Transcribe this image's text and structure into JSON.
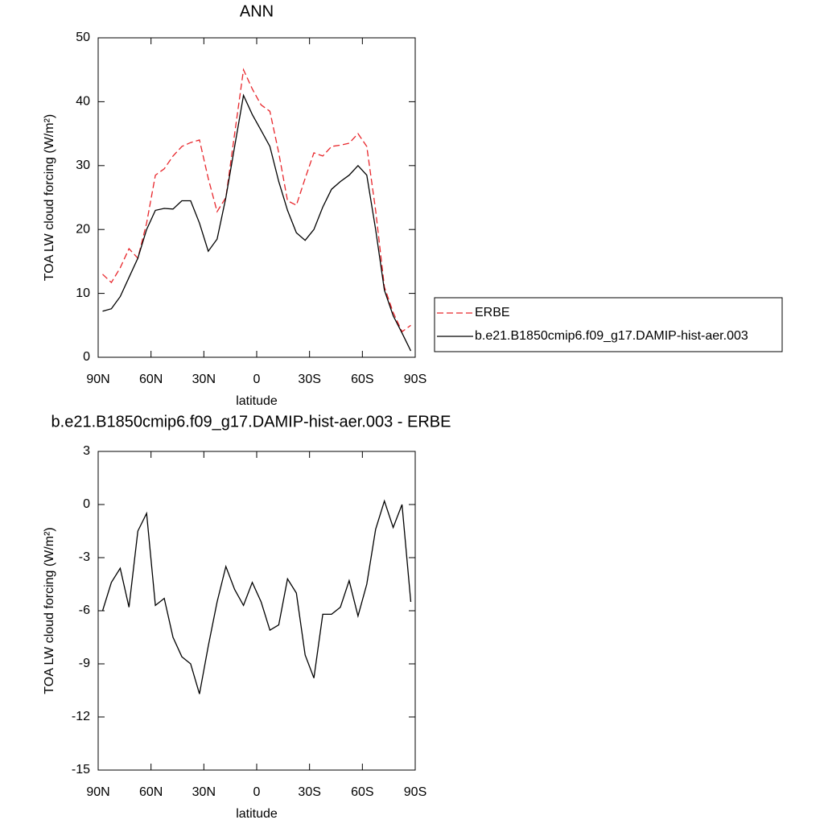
{
  "chart_data": [
    {
      "type": "line",
      "title": "ANN",
      "xlabel": "latitude",
      "ylabel": "TOA LW cloud forcing (W/m²)",
      "x": [
        87.5,
        82.5,
        77.5,
        72.5,
        67.5,
        62.5,
        57.5,
        52.5,
        47.5,
        42.5,
        37.5,
        32.5,
        27.5,
        22.5,
        17.5,
        12.5,
        7.5,
        2.5,
        -2.5,
        -7.5,
        -12.5,
        -17.5,
        -22.5,
        -27.5,
        -32.5,
        -37.5,
        -42.5,
        -47.5,
        -52.5,
        -57.5,
        -62.5,
        -67.5,
        -72.5,
        -77.5,
        -82.5,
        -87.5
      ],
      "xlim": [
        90,
        -90
      ],
      "xticks": [
        {
          "value": 90,
          "label": "90N"
        },
        {
          "value": 60,
          "label": "60N"
        },
        {
          "value": 30,
          "label": "30N"
        },
        0,
        {
          "value": -30,
          "label": "30S"
        },
        {
          "value": -60,
          "label": "60S"
        },
        {
          "value": -90,
          "label": "90S"
        }
      ],
      "ylim": [
        0,
        50
      ],
      "yticks": [
        0,
        10,
        20,
        30,
        40,
        50
      ],
      "series": [
        {
          "name": "ERBE",
          "color": "#e8262b",
          "dash": true,
          "values": [
            13,
            11.7,
            14,
            17,
            15.5,
            21,
            28.5,
            29.5,
            31.5,
            33,
            33.6,
            34,
            28,
            22.8,
            25,
            35,
            45,
            42,
            39.5,
            38.5,
            32,
            24.5,
            23.8,
            28,
            32,
            31.5,
            33,
            33.2,
            33.5,
            35,
            33,
            23,
            11,
            7,
            4,
            5
          ]
        },
        {
          "name": "b.e21.B1850cmip6.f09_g17.DAMIP-hist-aer.003",
          "color": "#000000",
          "dash": false,
          "values": [
            7.2,
            7.6,
            9.5,
            12.5,
            15.5,
            20,
            23,
            23.3,
            23.2,
            24.5,
            24.5,
            21,
            16.6,
            18.5,
            25,
            33,
            41,
            38,
            35.5,
            33,
            27.5,
            23,
            19.5,
            18.3,
            20,
            23.5,
            26.3,
            27.5,
            28.5,
            30,
            28.5,
            20,
            10.5,
            6.5,
            3.8,
            1
          ]
        }
      ]
    },
    {
      "type": "line",
      "title": "b.e21.B1850cmip6.f09_g17.DAMIP-hist-aer.003 - ERBE",
      "xlabel": "latitude",
      "ylabel": "TOA LW cloud forcing (W/m²)",
      "x": [
        87.5,
        82.5,
        77.5,
        72.5,
        67.5,
        62.5,
        57.5,
        52.5,
        47.5,
        42.5,
        37.5,
        32.5,
        27.5,
        22.5,
        17.5,
        12.5,
        7.5,
        2.5,
        -2.5,
        -7.5,
        -12.5,
        -17.5,
        -22.5,
        -27.5,
        -32.5,
        -37.5,
        -42.5,
        -47.5,
        -52.5,
        -57.5,
        -62.5,
        -67.5,
        -72.5,
        -77.5,
        -82.5,
        -87.5
      ],
      "xlim": [
        90,
        -90
      ],
      "xticks": [
        {
          "value": 90,
          "label": "90N"
        },
        {
          "value": 60,
          "label": "60N"
        },
        {
          "value": 30,
          "label": "30N"
        },
        0,
        {
          "value": -30,
          "label": "30S"
        },
        {
          "value": -60,
          "label": "60S"
        },
        {
          "value": -90,
          "label": "90S"
        }
      ],
      "ylim": [
        -15,
        3
      ],
      "yticks": [
        -15,
        -12,
        -9,
        -6,
        -3,
        0,
        3
      ],
      "series": [
        {
          "color": "#000000",
          "dash": false,
          "values": [
            -6,
            -4.4,
            -3.6,
            -5.8,
            -1.5,
            -0.5,
            -5.7,
            -5.3,
            -7.5,
            -8.6,
            -9,
            -10.7,
            -8,
            -5.5,
            -3.5,
            -4.8,
            -5.7,
            -4.4,
            -5.5,
            -7.1,
            -6.8,
            -4.2,
            -5,
            -8.5,
            -9.8,
            -6.2,
            -6.2,
            -5.8,
            -4.3,
            -6.3,
            -4.5,
            -1.4,
            0.2,
            -1.3,
            0,
            -5.5
          ]
        }
      ]
    }
  ]
}
